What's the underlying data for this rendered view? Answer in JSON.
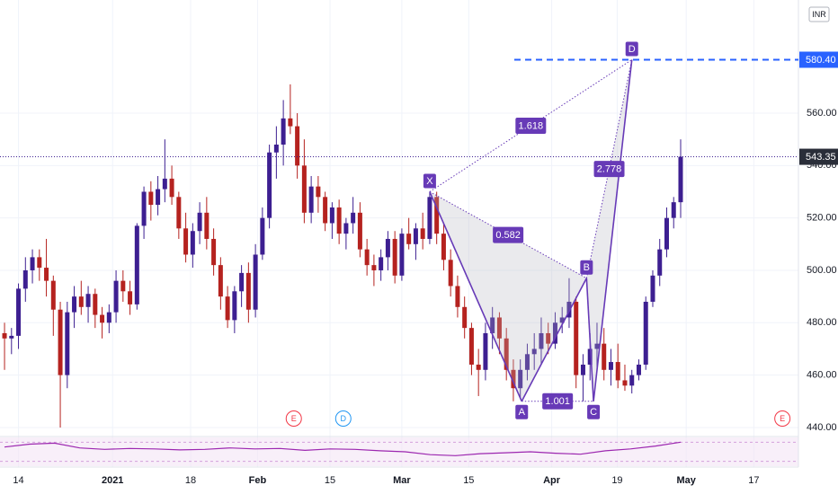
{
  "chart_data": {
    "type": "candlestick",
    "currency": "INR",
    "up_color": "#3d1f91",
    "down_color": "#b5221f",
    "pattern_color": "#673ab7",
    "target_color": "#2962ff",
    "xlim": [
      -0.65,
      113.9
    ],
    "ylim": [
      436.9,
      603.2
    ],
    "yticks": [
      {
        "value": 440,
        "label": "440.00"
      },
      {
        "value": 460,
        "label": "460.00"
      },
      {
        "value": 480,
        "label": "480.00"
      },
      {
        "value": 500,
        "label": "500.00"
      },
      {
        "value": 520,
        "label": "520.00"
      },
      {
        "value": 540,
        "label": "540.00"
      },
      {
        "value": 560,
        "label": "560.00"
      }
    ],
    "xticks": [
      {
        "value": 2,
        "label": "14"
      },
      {
        "value": 15.5,
        "label": "2021"
      },
      {
        "value": 26.7,
        "label": "18"
      },
      {
        "value": 36.3,
        "label": "Feb"
      },
      {
        "value": 46.7,
        "label": "15"
      },
      {
        "value": 57,
        "label": "Mar"
      },
      {
        "value": 66.6,
        "label": "15"
      },
      {
        "value": 78.5,
        "label": "Apr"
      },
      {
        "value": 87.9,
        "label": "19"
      },
      {
        "value": 97.8,
        "label": "May"
      },
      {
        "value": 107.5,
        "label": "17"
      }
    ],
    "candles": [
      [
        476,
        480,
        462,
        474
      ],
      [
        474,
        478,
        468,
        475
      ],
      [
        475,
        495,
        470,
        493
      ],
      [
        493,
        505,
        488,
        500
      ],
      [
        500,
        508,
        495,
        505
      ],
      [
        505,
        508,
        496,
        501
      ],
      [
        501,
        512,
        490,
        496
      ],
      [
        496,
        498,
        475,
        485
      ],
      [
        485,
        488,
        440,
        460
      ],
      [
        460,
        488,
        455,
        484
      ],
      [
        484,
        494,
        478,
        490
      ],
      [
        490,
        496,
        483,
        486
      ],
      [
        486,
        494,
        480,
        491
      ],
      [
        491,
        493,
        478,
        483
      ],
      [
        483,
        486,
        474,
        480
      ],
      [
        480,
        487,
        476,
        484
      ],
      [
        484,
        500,
        480,
        496
      ],
      [
        496,
        500,
        488,
        492
      ],
      [
        492,
        496,
        483,
        487
      ],
      [
        487,
        518,
        485,
        517
      ],
      [
        517,
        532,
        512,
        530
      ],
      [
        530,
        534,
        519,
        525
      ],
      [
        525,
        536,
        521,
        531
      ],
      [
        531,
        550,
        526,
        535
      ],
      [
        535,
        540,
        525,
        528
      ],
      [
        528,
        530,
        512,
        516
      ],
      [
        516,
        522,
        503,
        506
      ],
      [
        506,
        518,
        501,
        515
      ],
      [
        515,
        526,
        510,
        522
      ],
      [
        522,
        528,
        508,
        512
      ],
      [
        512,
        516,
        498,
        502
      ],
      [
        502,
        505,
        485,
        490
      ],
      [
        490,
        494,
        478,
        481
      ],
      [
        481,
        494,
        476,
        492
      ],
      [
        492,
        502,
        486,
        499
      ],
      [
        499,
        503,
        480,
        485
      ],
      [
        485,
        510,
        482,
        506
      ],
      [
        506,
        524,
        504,
        520
      ],
      [
        520,
        548,
        516,
        545
      ],
      [
        545,
        555,
        535,
        548
      ],
      [
        548,
        565,
        540,
        558
      ],
      [
        558,
        571,
        552,
        555
      ],
      [
        555,
        560,
        535,
        540
      ],
      [
        540,
        550,
        518,
        522
      ],
      [
        522,
        536,
        518,
        532
      ],
      [
        532,
        536,
        522,
        528
      ],
      [
        528,
        530,
        515,
        518
      ],
      [
        518,
        526,
        512,
        524
      ],
      [
        524,
        527,
        510,
        514
      ],
      [
        514,
        520,
        508,
        518
      ],
      [
        518,
        528,
        514,
        522
      ],
      [
        522,
        526,
        505,
        508
      ],
      [
        508,
        512,
        498,
        502
      ],
      [
        502,
        506,
        494,
        500
      ],
      [
        500,
        508,
        496,
        505
      ],
      [
        505,
        515,
        500,
        512
      ],
      [
        512,
        515,
        495,
        498
      ],
      [
        498,
        516,
        496,
        514
      ],
      [
        514,
        520,
        508,
        510
      ],
      [
        510,
        518,
        504,
        516
      ],
      [
        516,
        522,
        508,
        512
      ],
      [
        512,
        530,
        510,
        528
      ],
      [
        528,
        530,
        510,
        514
      ],
      [
        514,
        518,
        500,
        504
      ],
      [
        504,
        508,
        490,
        494
      ],
      [
        494,
        498,
        482,
        486
      ],
      [
        486,
        490,
        474,
        478
      ],
      [
        478,
        480,
        460,
        464
      ],
      [
        464,
        470,
        452,
        462
      ],
      [
        462,
        480,
        458,
        476
      ],
      [
        476,
        486,
        470,
        482
      ],
      [
        482,
        484,
        468,
        474
      ],
      [
        474,
        478,
        458,
        462
      ],
      [
        462,
        466,
        450,
        455
      ],
      [
        455,
        466,
        451,
        462
      ],
      [
        462,
        472,
        458,
        468
      ],
      [
        468,
        476,
        462,
        470
      ],
      [
        470,
        482,
        464,
        476
      ],
      [
        476,
        480,
        468,
        472
      ],
      [
        472,
        484,
        470,
        480
      ],
      [
        480,
        486,
        476,
        482
      ],
      [
        482,
        497,
        478,
        488
      ],
      [
        488,
        490,
        455,
        460
      ],
      [
        460,
        468,
        450,
        464
      ],
      [
        464,
        476,
        458,
        470
      ],
      [
        470,
        480,
        462,
        472
      ],
      [
        472,
        478,
        458,
        462
      ],
      [
        462,
        470,
        456,
        465
      ],
      [
        465,
        472,
        455,
        458
      ],
      [
        458,
        464,
        454,
        456
      ],
      [
        456,
        462,
        453,
        460
      ],
      [
        460,
        466,
        458,
        464
      ],
      [
        464,
        490,
        462,
        488
      ],
      [
        488,
        500,
        486,
        498
      ],
      [
        498,
        512,
        494,
        508
      ],
      [
        508,
        524,
        505,
        520
      ],
      [
        520,
        528,
        516,
        526
      ],
      [
        526,
        550,
        520,
        543.35
      ]
    ],
    "pattern": {
      "points": [
        {
          "label": "X",
          "x": 61,
          "price": 530
        },
        {
          "label": "A",
          "x": 74.2,
          "price": 450
        },
        {
          "label": "B",
          "x": 83.5,
          "price": 497
        },
        {
          "label": "C",
          "x": 84.5,
          "price": 450
        },
        {
          "label": "D",
          "x": 90,
          "price": 580.4
        }
      ],
      "ratios": [
        0.582,
        1.618,
        1.001,
        2.778
      ]
    },
    "target": {
      "value": 580.4,
      "label": "580.40"
    },
    "events": [
      {
        "x": 41.5,
        "label": "E"
      },
      {
        "x": 48.6,
        "label": "D"
      },
      {
        "x": 111.6,
        "label": "E"
      }
    ],
    "rsi": {
      "values": [
        60,
        66,
        68,
        58,
        55,
        57,
        56,
        54,
        55,
        58,
        56,
        57,
        53,
        56,
        55,
        52,
        50,
        44,
        42,
        46,
        48,
        50,
        47,
        45,
        52,
        56,
        62,
        70
      ],
      "ylim": [
        20,
        80
      ],
      "bands": [
        70,
        30
      ],
      "color": "#9c27b0"
    }
  }
}
